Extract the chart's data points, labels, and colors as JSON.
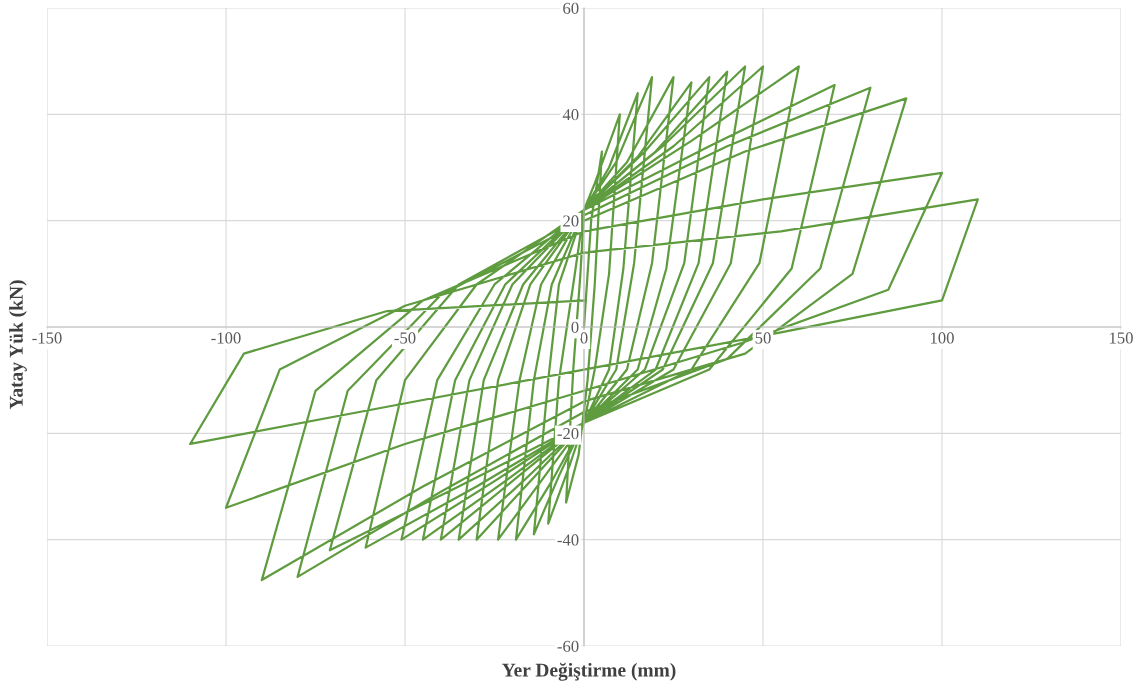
{
  "chart_data": {
    "type": "line",
    "xlabel": "Yer Değiştirme (mm)",
    "ylabel": "Yatay Yük (kN)",
    "xlim": [
      -150,
      150
    ],
    "ylim": [
      -60,
      60
    ],
    "xticks": [
      -150,
      -100,
      -50,
      0,
      50,
      100,
      150
    ],
    "yticks": [
      -60,
      -40,
      -20,
      0,
      20,
      40,
      60
    ],
    "grid": true,
    "marker": "none",
    "line_style": "solid",
    "series": [
      {
        "color": "#5f9b3f",
        "x": [
          0,
          2,
          5,
          3,
          1,
          -1.5,
          -5,
          -3,
          -1,
          0,
          3,
          10,
          7,
          3,
          0,
          -4,
          -10,
          -7,
          -3,
          0,
          7,
          15,
          11,
          7,
          0,
          -7,
          -14,
          -10,
          -7,
          0,
          9,
          19,
          14,
          9,
          0,
          -9,
          -19,
          -14,
          -9,
          0,
          12,
          25,
          19,
          12,
          0,
          -12,
          -24,
          -18,
          -12,
          0,
          15,
          30,
          23,
          15,
          0,
          -15,
          -30,
          -24,
          -15,
          0,
          17,
          35,
          28,
          17,
          0,
          -17,
          -35,
          -28,
          -17,
          0,
          20,
          40,
          32,
          20,
          0,
          -20,
          -40,
          -32,
          -20,
          0,
          22,
          45,
          36,
          22,
          0,
          -22,
          -45,
          -36,
          -22,
          0,
          25,
          50,
          41,
          25,
          0,
          -25,
          -51,
          -41,
          -25,
          0,
          30,
          60,
          49,
          30,
          0,
          -30,
          -61,
          -50,
          -30,
          0,
          35,
          70,
          58,
          35,
          0,
          -35,
          -71,
          -58,
          -35,
          0,
          40,
          80,
          66,
          40,
          0,
          -40,
          -80,
          -66,
          -40,
          0,
          45,
          90,
          75,
          45,
          0,
          -45,
          -90,
          -75,
          -45,
          0,
          50,
          100,
          85,
          44,
          0,
          -50,
          -100,
          -85,
          -50,
          0,
          55,
          110,
          100,
          55,
          0,
          -55,
          -110,
          -95,
          -55,
          0
        ],
        "values": [
          0,
          20,
          33,
          8,
          -10,
          -24,
          -33,
          -8,
          10,
          22,
          27,
          40,
          10,
          -8,
          -18,
          -26,
          -37,
          -10,
          8,
          22,
          30,
          44,
          11,
          -8,
          -18,
          -28,
          -39,
          -10,
          8,
          22,
          31,
          47,
          12,
          -8,
          -18,
          -29,
          -40,
          -10,
          8,
          22,
          31,
          47,
          12,
          -8,
          -18,
          -29,
          -40,
          -10,
          8,
          22,
          32,
          46,
          11,
          -8,
          -18,
          -29,
          -40,
          -10,
          8,
          22,
          33,
          47,
          12,
          -8,
          -18,
          -29,
          -40,
          -10,
          8,
          22,
          33,
          48,
          12,
          -8,
          -18,
          -29,
          -40,
          -10,
          8,
          22,
          34,
          49,
          12,
          -8,
          -18,
          -29,
          -40,
          -10,
          8,
          22,
          34,
          49,
          12,
          -8,
          -18,
          -29,
          -40,
          -10,
          8,
          22,
          35,
          49,
          12,
          -8,
          -18,
          -30,
          -41.5,
          -10,
          8,
          22,
          34,
          45.5,
          11,
          -8,
          -18,
          -30,
          -42,
          -10,
          8,
          21,
          34,
          45,
          11,
          -6,
          -16,
          -31,
          -47,
          -12,
          6,
          20,
          33,
          43,
          10,
          -5,
          -14,
          -30,
          -47.6,
          -12,
          5,
          18,
          24,
          29,
          7,
          -3,
          -12,
          -22,
          -34,
          -8,
          4,
          14,
          18,
          24,
          5,
          -1,
          -8,
          -15,
          -22,
          -5,
          3,
          5
        ]
      }
    ]
  }
}
